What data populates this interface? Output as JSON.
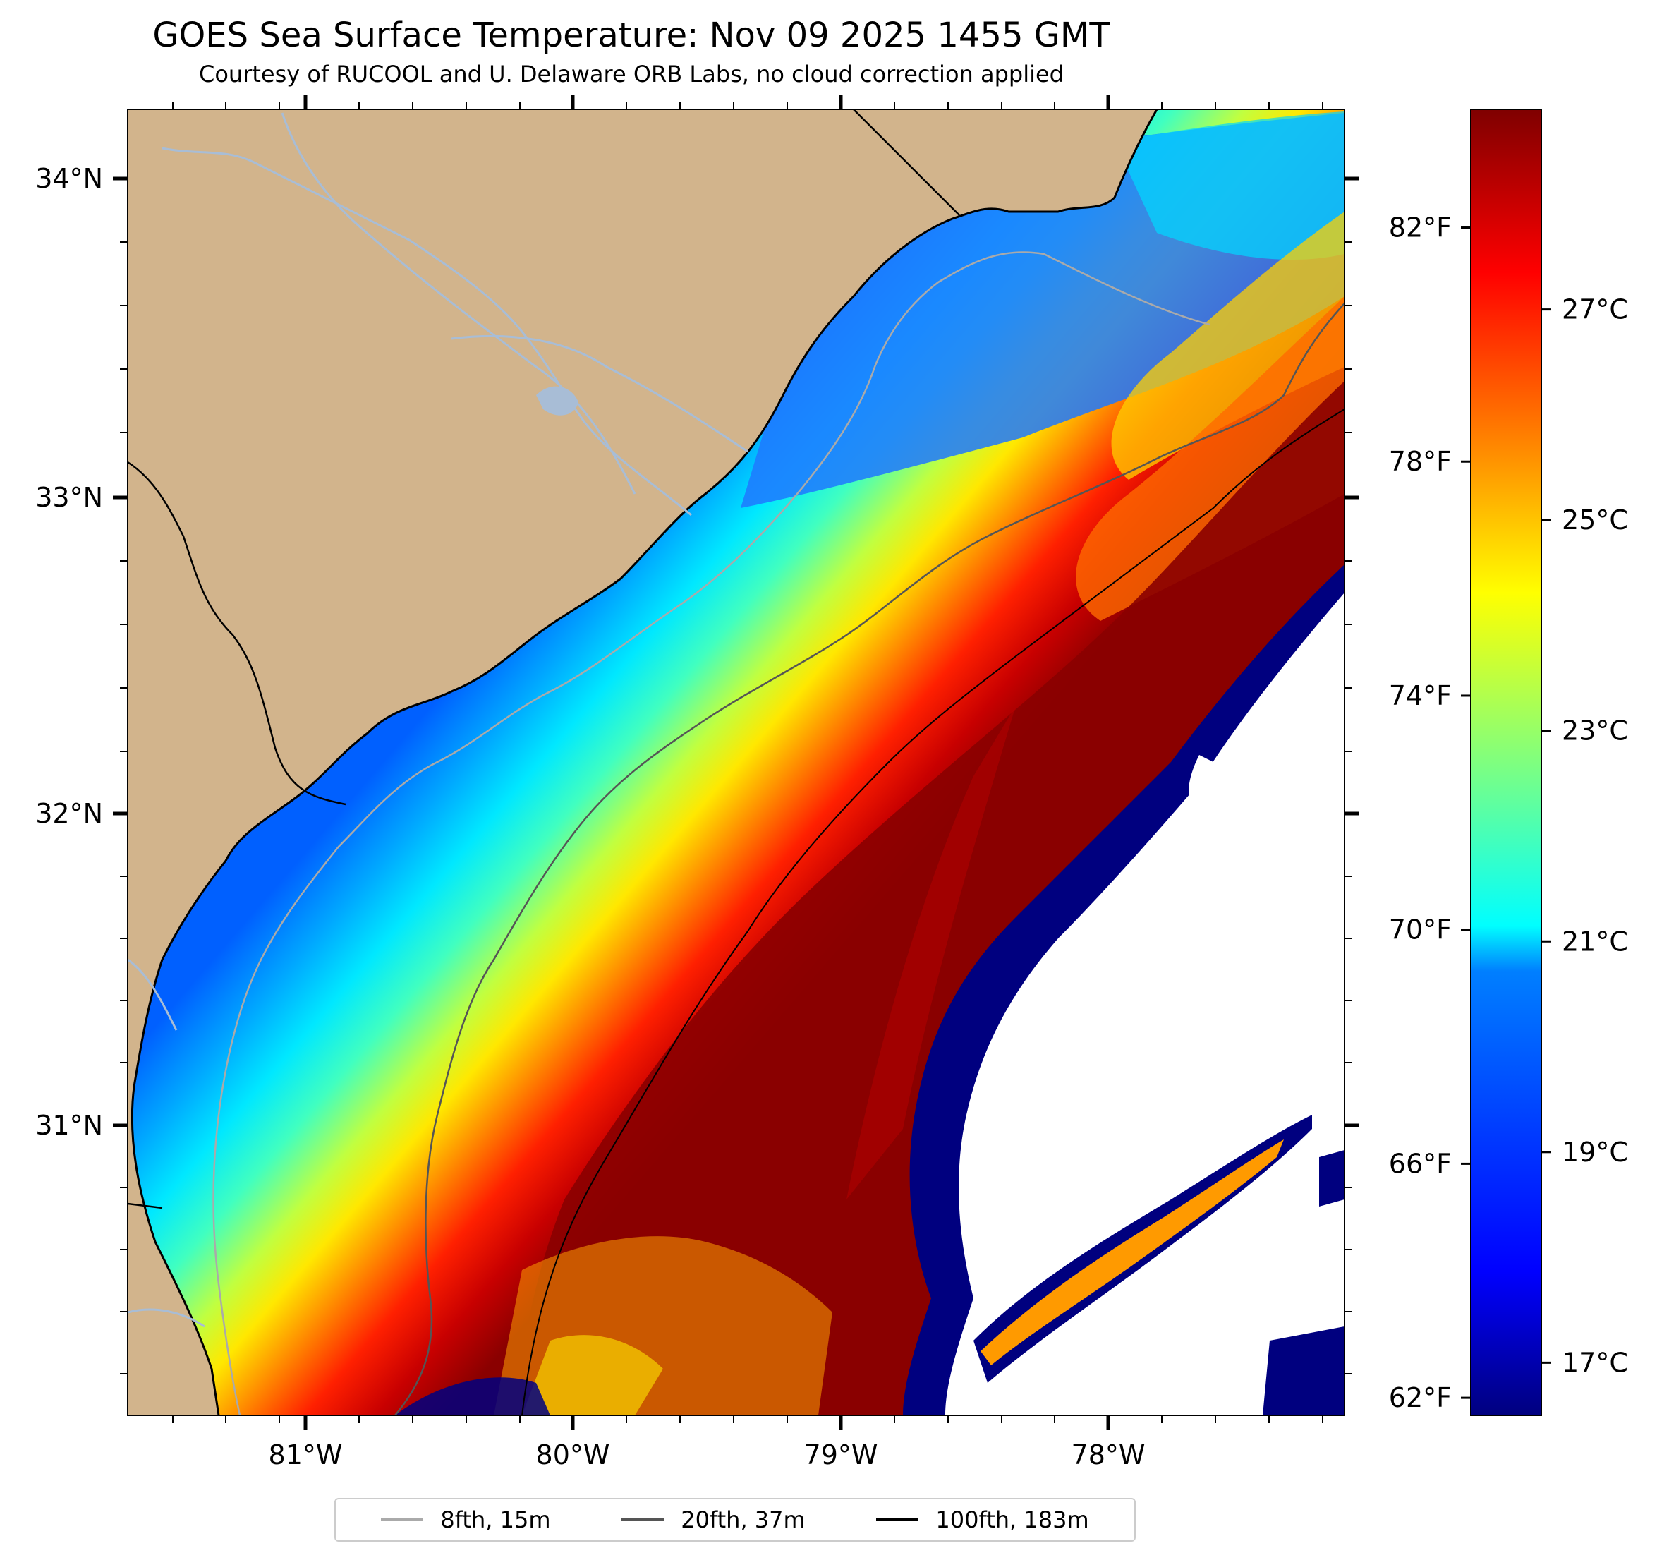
{
  "title": "GOES Sea Surface Temperature: Nov 09 2025 1455 GMT",
  "subtitle": "Courtesy of RUCOOL and U. Delaware ORB Labs, no cloud correction applied",
  "map": {
    "lon_range": [
      -81.67,
      -77.13
    ],
    "lat_range": [
      30.1,
      34.22
    ],
    "lat_ticks": [
      {
        "value": 34,
        "label": "34°N"
      },
      {
        "value": 33,
        "label": "33°N"
      },
      {
        "value": 32,
        "label": "32°N"
      },
      {
        "value": 31,
        "label": "31°N"
      }
    ],
    "lon_ticks": [
      {
        "value": -81,
        "label": "81°W"
      },
      {
        "value": -80,
        "label": "80°W"
      },
      {
        "value": -79,
        "label": "79°W"
      },
      {
        "value": -78,
        "label": "78°W"
      }
    ],
    "colors": {
      "land": "#d2b48c",
      "rivers": "#a8bdd6",
      "no_data": "#ffffff"
    }
  },
  "colorbar": {
    "range_c": [
      16.5,
      28.9
    ],
    "celsius_ticks": [
      {
        "value": 17,
        "label": "17°C"
      },
      {
        "value": 19,
        "label": "19°C"
      },
      {
        "value": 21,
        "label": "21°C"
      },
      {
        "value": 23,
        "label": "23°C"
      },
      {
        "value": 25,
        "label": "25°C"
      },
      {
        "value": 27,
        "label": "27°C"
      }
    ],
    "fahrenheit_ticks": [
      {
        "value": 62,
        "label": "62°F"
      },
      {
        "value": 66,
        "label": "66°F"
      },
      {
        "value": 70,
        "label": "70°F"
      },
      {
        "value": 74,
        "label": "74°F"
      },
      {
        "value": 78,
        "label": "78°F"
      },
      {
        "value": 82,
        "label": "82°F"
      }
    ],
    "colormap": [
      "#00007f",
      "#0000ff",
      "#007fff",
      "#00ffff",
      "#7fff7f",
      "#ffff00",
      "#ff7f00",
      "#ff0000",
      "#7f0000"
    ]
  },
  "legend": [
    {
      "label": "8fth, 15m",
      "color": "#aaaaaa"
    },
    {
      "label": "20fth, 37m",
      "color": "#555555"
    },
    {
      "label": "100fth, 183m",
      "color": "#000000"
    }
  ]
}
